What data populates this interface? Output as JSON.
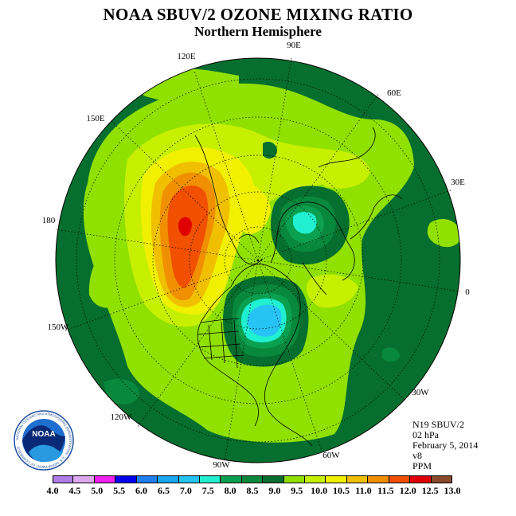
{
  "title": "NOAA SBUV/2 OZONE MIXING RATIO",
  "subtitle": "Northern Hemisphere",
  "info": {
    "instrument": "N19 SBUV/2",
    "level": "02 hPa",
    "date": "February 5, 2014",
    "version": "v8",
    "units": "PPM"
  },
  "logo": {
    "text": "NOAA",
    "ring_text": "NATIONAL OCEANIC AND ATMOSPHERIC ADMINISTRATION · U.S. DEPARTMENT OF COMMERCE"
  },
  "longitude_labels": [
    "120E",
    "90E",
    "60E",
    "30E",
    "0",
    "30W",
    "60W",
    "90W",
    "120W",
    "150W",
    "180",
    "150E"
  ],
  "legend": {
    "colors": [
      "#b07ee8",
      "#dca8ee",
      "#f020f0",
      "#0000ee",
      "#1f7ff0",
      "#1aa7f0",
      "#26c4f4",
      "#20f0d0",
      "#0aa050",
      "#08883c",
      "#066e2e",
      "#90e000",
      "#c6f000",
      "#f0f000",
      "#f0c000",
      "#f09000",
      "#f05000",
      "#e00000",
      "#8a4a2a"
    ],
    "labels": [
      "4.0",
      "4.5",
      "5.0",
      "5.5",
      "6.0",
      "6.5",
      "7.0",
      "7.5",
      "8.0",
      "8.5",
      "9.0",
      "9.5",
      "10.0",
      "10.5",
      "11.0",
      "11.5",
      "12.0",
      "12.5",
      "13.0"
    ]
  }
}
